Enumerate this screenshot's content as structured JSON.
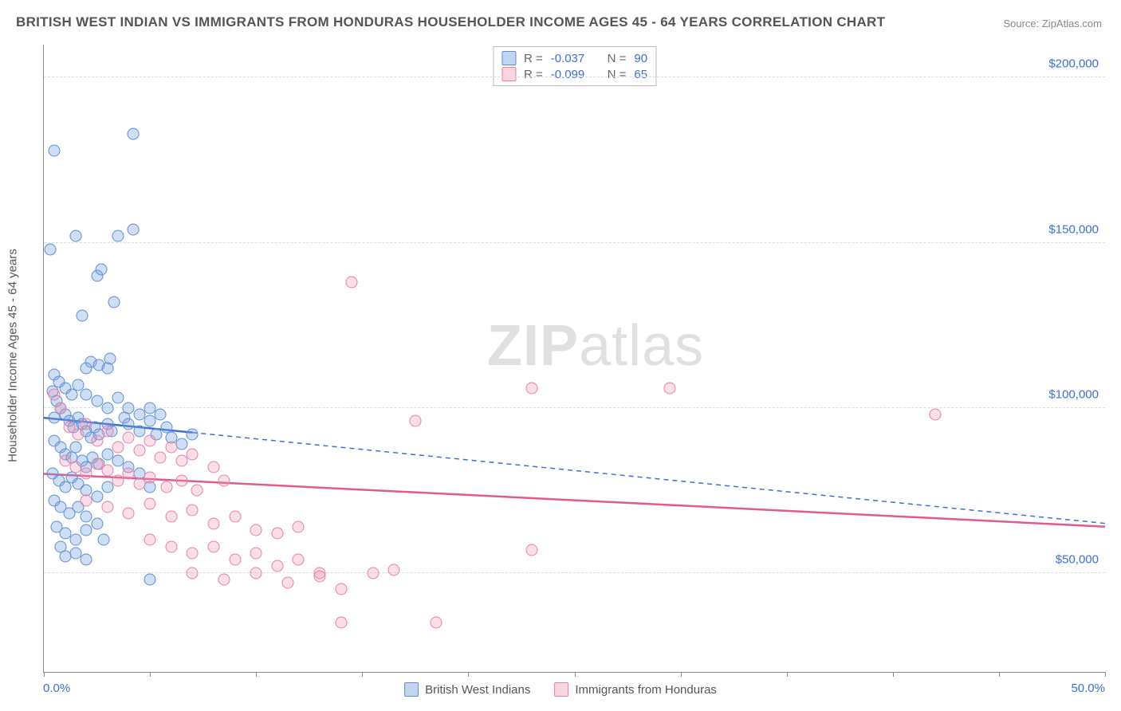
{
  "title": "BRITISH WEST INDIAN VS IMMIGRANTS FROM HONDURAS HOUSEHOLDER INCOME AGES 45 - 64 YEARS CORRELATION CHART",
  "source_label": "Source: ",
  "source_name": "ZipAtlas.com",
  "yaxis_title": "Householder Income Ages 45 - 64 years",
  "watermark_a": "ZIP",
  "watermark_b": "atlas",
  "chart": {
    "type": "scatter",
    "xlim": [
      0,
      50
    ],
    "ylim": [
      20000,
      210000
    ],
    "x_ticks": [
      0,
      5,
      10,
      15,
      20,
      25,
      30,
      35,
      40,
      45,
      50
    ],
    "x_tick_labels": {
      "0": "0.0%",
      "50": "50.0%"
    },
    "y_gridlines": [
      50000,
      100000,
      150000,
      200000
    ],
    "y_tick_labels": [
      "$50,000",
      "$100,000",
      "$150,000",
      "$200,000"
    ],
    "background_color": "#ffffff",
    "grid_color": "#dddddd",
    "axis_color": "#888888",
    "label_color": "#3b6fd6",
    "title_color": "#555555",
    "title_fontsize": 17,
    "label_fontsize": 15,
    "point_radius": 7.5,
    "series": [
      {
        "name": "British West Indians",
        "color_fill": "rgba(120,160,220,0.35)",
        "color_stroke": "#5a8fd6",
        "css_class": "blue",
        "R": "-0.037",
        "N": "90",
        "trend": {
          "x1": 0,
          "y1": 97000,
          "x2": 50,
          "y2": 65000,
          "stroke": "#3b6fd6",
          "dash_after_x": 7
        },
        "points": [
          [
            0.5,
            178000
          ],
          [
            4.2,
            183000
          ],
          [
            0.3,
            148000
          ],
          [
            1.5,
            152000
          ],
          [
            3.5,
            152000
          ],
          [
            4.2,
            154000
          ],
          [
            2.5,
            140000
          ],
          [
            2.7,
            142000
          ],
          [
            3.3,
            132000
          ],
          [
            1.8,
            128000
          ],
          [
            2.2,
            114000
          ],
          [
            3.1,
            115000
          ],
          [
            2.0,
            112000
          ],
          [
            2.6,
            113000
          ],
          [
            3.0,
            112000
          ],
          [
            0.4,
            105000
          ],
          [
            0.6,
            102000
          ],
          [
            0.8,
            100000
          ],
          [
            0.5,
            97000
          ],
          [
            1.0,
            98000
          ],
          [
            1.2,
            96000
          ],
          [
            1.4,
            94000
          ],
          [
            1.6,
            97000
          ],
          [
            1.8,
            95000
          ],
          [
            2.0,
            93000
          ],
          [
            2.2,
            91000
          ],
          [
            2.4,
            94000
          ],
          [
            2.6,
            92000
          ],
          [
            3.0,
            95000
          ],
          [
            3.2,
            93000
          ],
          [
            3.8,
            97000
          ],
          [
            4.0,
            95000
          ],
          [
            4.5,
            93000
          ],
          [
            5.0,
            96000
          ],
          [
            5.3,
            92000
          ],
          [
            5.8,
            94000
          ],
          [
            6.0,
            91000
          ],
          [
            6.5,
            89000
          ],
          [
            7.0,
            92000
          ],
          [
            0.5,
            90000
          ],
          [
            0.8,
            88000
          ],
          [
            1.0,
            86000
          ],
          [
            1.3,
            85000
          ],
          [
            1.5,
            88000
          ],
          [
            1.8,
            84000
          ],
          [
            2.0,
            82000
          ],
          [
            2.3,
            85000
          ],
          [
            2.6,
            83000
          ],
          [
            3.0,
            86000
          ],
          [
            3.5,
            84000
          ],
          [
            4.0,
            82000
          ],
          [
            4.5,
            80000
          ],
          [
            0.4,
            80000
          ],
          [
            0.7,
            78000
          ],
          [
            1.0,
            76000
          ],
          [
            1.3,
            79000
          ],
          [
            1.6,
            77000
          ],
          [
            2.0,
            75000
          ],
          [
            2.5,
            73000
          ],
          [
            3.0,
            76000
          ],
          [
            0.5,
            72000
          ],
          [
            0.8,
            70000
          ],
          [
            1.2,
            68000
          ],
          [
            1.6,
            70000
          ],
          [
            2.0,
            67000
          ],
          [
            2.5,
            65000
          ],
          [
            0.6,
            64000
          ],
          [
            1.0,
            62000
          ],
          [
            1.5,
            60000
          ],
          [
            2.0,
            63000
          ],
          [
            2.8,
            60000
          ],
          [
            0.8,
            58000
          ],
          [
            1.5,
            56000
          ],
          [
            1.0,
            55000
          ],
          [
            2.0,
            54000
          ],
          [
            5.0,
            48000
          ],
          [
            0.5,
            110000
          ],
          [
            0.7,
            108000
          ],
          [
            1.0,
            106000
          ],
          [
            1.3,
            104000
          ],
          [
            1.6,
            107000
          ],
          [
            2.0,
            104000
          ],
          [
            2.5,
            102000
          ],
          [
            3.0,
            100000
          ],
          [
            3.5,
            103000
          ],
          [
            4.0,
            100000
          ],
          [
            4.5,
            98000
          ],
          [
            5.0,
            100000
          ],
          [
            5.5,
            98000
          ],
          [
            5.0,
            76000
          ]
        ]
      },
      {
        "name": "Immigrants from Honduras",
        "color_fill": "rgba(240,150,180,0.30)",
        "color_stroke": "#e87fa8",
        "css_class": "pink",
        "R": "-0.099",
        "N": "65",
        "trend": {
          "x1": 0,
          "y1": 80000,
          "x2": 50,
          "y2": 64000,
          "stroke": "#e15a8f",
          "dash_after_x": 50
        },
        "points": [
          [
            14.5,
            138000
          ],
          [
            23.0,
            106000
          ],
          [
            29.5,
            106000
          ],
          [
            42.0,
            98000
          ],
          [
            17.5,
            96000
          ],
          [
            0.5,
            104000
          ],
          [
            0.8,
            100000
          ],
          [
            1.2,
            94000
          ],
          [
            1.6,
            92000
          ],
          [
            2.0,
            95000
          ],
          [
            2.5,
            90000
          ],
          [
            3.0,
            93000
          ],
          [
            3.5,
            88000
          ],
          [
            4.0,
            91000
          ],
          [
            4.5,
            87000
          ],
          [
            5.0,
            90000
          ],
          [
            5.5,
            85000
          ],
          [
            6.0,
            88000
          ],
          [
            6.5,
            84000
          ],
          [
            7.0,
            86000
          ],
          [
            1.0,
            84000
          ],
          [
            1.5,
            82000
          ],
          [
            2.0,
            80000
          ],
          [
            2.5,
            83000
          ],
          [
            3.0,
            81000
          ],
          [
            3.5,
            78000
          ],
          [
            4.0,
            80000
          ],
          [
            4.5,
            77000
          ],
          [
            5.0,
            79000
          ],
          [
            5.8,
            76000
          ],
          [
            6.5,
            78000
          ],
          [
            7.2,
            75000
          ],
          [
            8.0,
            82000
          ],
          [
            8.5,
            78000
          ],
          [
            2.0,
            72000
          ],
          [
            3.0,
            70000
          ],
          [
            4.0,
            68000
          ],
          [
            5.0,
            71000
          ],
          [
            6.0,
            67000
          ],
          [
            7.0,
            69000
          ],
          [
            8.0,
            65000
          ],
          [
            9.0,
            67000
          ],
          [
            10.0,
            63000
          ],
          [
            11.0,
            62000
          ],
          [
            12.0,
            64000
          ],
          [
            5.0,
            60000
          ],
          [
            6.0,
            58000
          ],
          [
            7.0,
            56000
          ],
          [
            8.0,
            58000
          ],
          [
            9.0,
            54000
          ],
          [
            10.0,
            56000
          ],
          [
            11.0,
            52000
          ],
          [
            12.0,
            54000
          ],
          [
            13.0,
            50000
          ],
          [
            23.0,
            57000
          ],
          [
            7.0,
            50000
          ],
          [
            8.5,
            48000
          ],
          [
            10.0,
            50000
          ],
          [
            11.5,
            47000
          ],
          [
            13.0,
            49000
          ],
          [
            14.0,
            45000
          ],
          [
            15.5,
            50000
          ],
          [
            16.5,
            51000
          ],
          [
            14.0,
            35000
          ],
          [
            18.5,
            35000
          ]
        ]
      }
    ]
  },
  "legend": {
    "item1": "British West Indians",
    "item2": "Immigrants from Honduras"
  },
  "stats_labels": {
    "R": "R =",
    "N": "N ="
  }
}
